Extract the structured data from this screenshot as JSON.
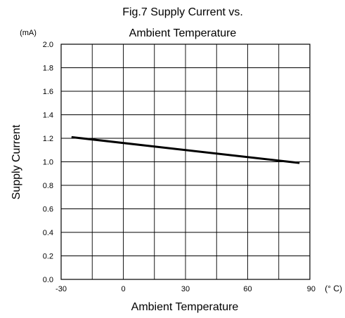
{
  "chart_data": {
    "type": "line",
    "title_lines": [
      "Fig.7 Supply Current vs.",
      "Ambient Temperature"
    ],
    "xlabel": "Ambient Temperature",
    "ylabel": "Supply Current",
    "x_unit": "(° C)",
    "y_unit": "(mA)",
    "xlim": [
      -30,
      90
    ],
    "ylim": [
      0.0,
      2.0
    ],
    "x_ticks": [
      -30,
      0,
      30,
      60,
      90
    ],
    "x_tick_labels": [
      "-30",
      "0",
      "30",
      "60",
      "90"
    ],
    "y_ticks": [
      0.0,
      0.2,
      0.4,
      0.6,
      0.8,
      1.0,
      1.2,
      1.4,
      1.6,
      1.8,
      2.0
    ],
    "y_tick_labels": [
      "0.0",
      "0.2",
      "0.4",
      "0.6",
      "0.8",
      "1.0",
      "1.2",
      "1.4",
      "1.6",
      "1.8",
      "2.0"
    ],
    "x_grid_step": 15,
    "y_grid_step": 0.2,
    "grid": true,
    "series": [
      {
        "x": [
          -25,
          85
        ],
        "y": [
          1.21,
          0.99
        ],
        "color": "#000000"
      }
    ]
  }
}
